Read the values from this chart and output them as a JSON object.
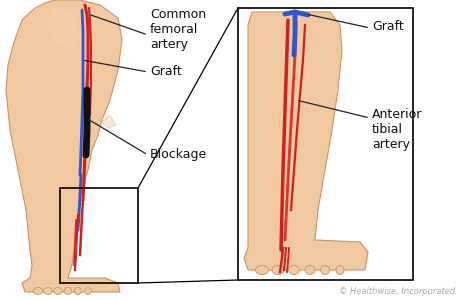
{
  "bg_color": "#ffffff",
  "skin_color": "#f2c8a0",
  "skin_outline": "#c8956a",
  "skin_fill_inner": "#f5d4b0",
  "artery_color": "#cc2222",
  "artery_color2": "#dd3333",
  "graft_color": "#3355cc",
  "blockage_color": "#111111",
  "copyright_text": "© Healthwise, Incorporated",
  "copyright_color": "#aaaaaa",
  "copyright_fontsize": 6.0,
  "label_fontsize": 9.0,
  "label_color": "#111111",
  "line_color": "#222222",
  "labels": {
    "common_femoral": "Common\nfemoral\nartery",
    "graft_left": "Graft",
    "blockage": "Blockage",
    "graft_right": "Graft",
    "anterior_tibial": "Anterior\ntibial\nartery"
  }
}
